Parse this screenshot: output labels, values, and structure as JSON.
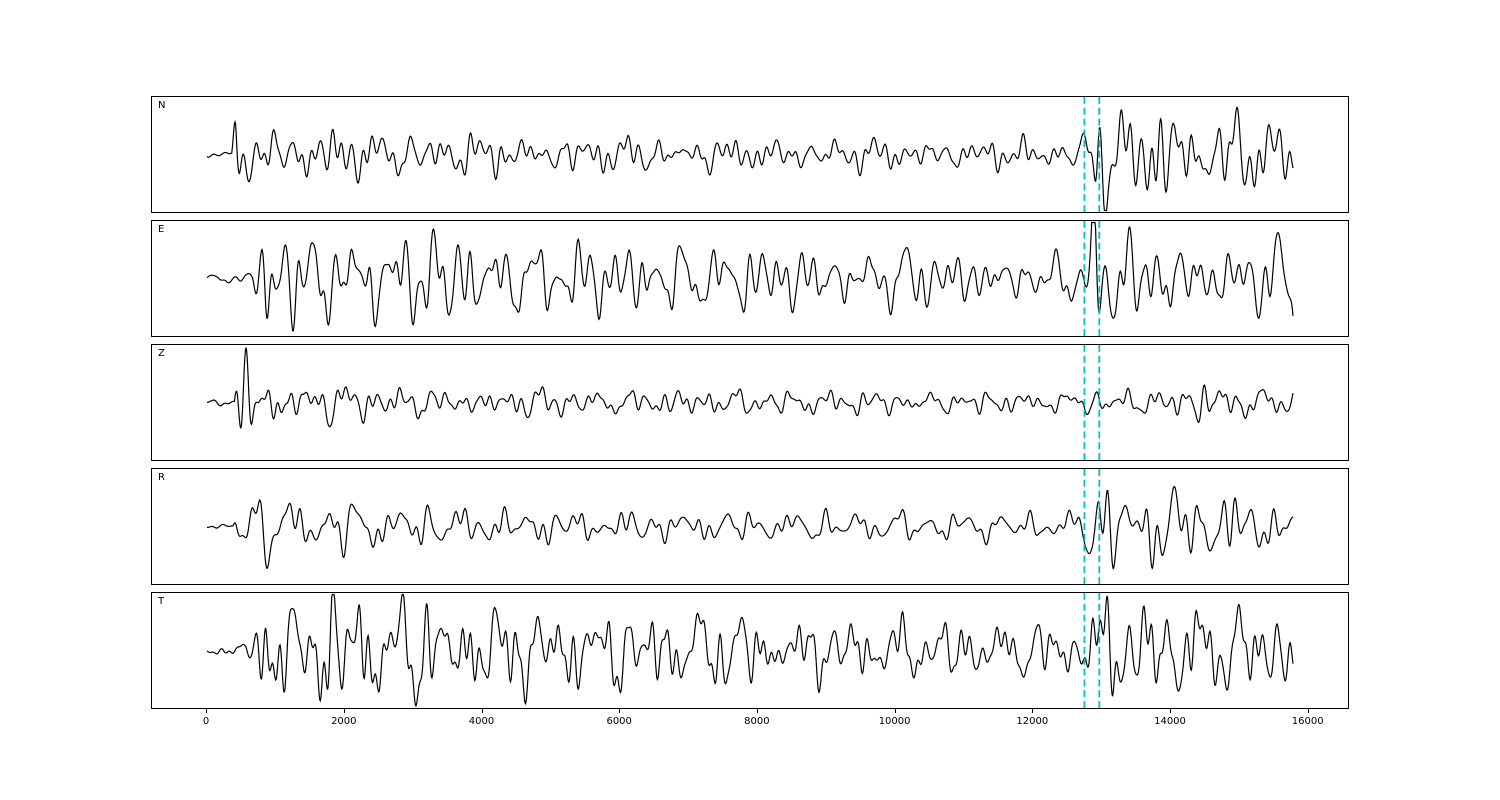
{
  "figure": {
    "background": "#ffffff",
    "trace_color": "#000000",
    "pick_line_color": "#00bfbf"
  },
  "chart_data": {
    "type": "line",
    "title": "",
    "xlabel": "",
    "ylabel": "",
    "legend": "none",
    "grid": false,
    "xlim": [
      -800,
      16600
    ],
    "xticks": [
      0,
      2000,
      4000,
      6000,
      8000,
      10000,
      12000,
      14000,
      16000
    ],
    "x_range_data": [
      0,
      15800
    ],
    "sample_step": 8,
    "pick_lines": [
      12765,
      12982
    ],
    "pick_line_style": "dashed",
    "channels": [
      {
        "name": "N",
        "seed": 11,
        "amplitude": 0.85,
        "envelope": [
          [
            0,
            0.04
          ],
          [
            360,
            0.05
          ],
          [
            420,
            0.9
          ],
          [
            520,
            0.55
          ],
          [
            800,
            0.6
          ],
          [
            1500,
            0.55
          ],
          [
            2500,
            0.45
          ],
          [
            4000,
            0.4
          ],
          [
            6000,
            0.35
          ],
          [
            8000,
            0.32
          ],
          [
            10000,
            0.3
          ],
          [
            12000,
            0.3
          ],
          [
            12700,
            0.32
          ],
          [
            12870,
            0.7
          ],
          [
            12960,
            1.5
          ],
          [
            13120,
            1.1
          ],
          [
            13400,
            0.7
          ],
          [
            13800,
            1.1
          ],
          [
            14200,
            0.9
          ],
          [
            14700,
            1.0
          ],
          [
            15200,
            0.7
          ],
          [
            15800,
            0.55
          ]
        ]
      },
      {
        "name": "E",
        "seed": 23,
        "amplitude": 0.9,
        "envelope": [
          [
            0,
            0.05
          ],
          [
            650,
            0.12
          ],
          [
            850,
            1.3
          ],
          [
            1050,
            0.8
          ],
          [
            1500,
            0.9
          ],
          [
            2100,
            0.95
          ],
          [
            3000,
            0.85
          ],
          [
            4200,
            0.75
          ],
          [
            5500,
            0.7
          ],
          [
            7000,
            0.65
          ],
          [
            8500,
            0.6
          ],
          [
            10000,
            0.55
          ],
          [
            11500,
            0.5
          ],
          [
            12600,
            0.45
          ],
          [
            12850,
            0.8
          ],
          [
            12950,
            1.5
          ],
          [
            13150,
            0.9
          ],
          [
            13600,
            0.8
          ],
          [
            14100,
            0.9
          ],
          [
            14600,
            0.7
          ],
          [
            15100,
            0.6
          ],
          [
            15500,
            0.6
          ],
          [
            15800,
            1.0
          ]
        ]
      },
      {
        "name": "Z",
        "seed": 37,
        "amplitude": 0.9,
        "envelope": [
          [
            0,
            0.04
          ],
          [
            400,
            0.06
          ],
          [
            450,
            2.0
          ],
          [
            560,
            1.2
          ],
          [
            700,
            0.5
          ],
          [
            1000,
            0.6
          ],
          [
            1300,
            0.45
          ],
          [
            1800,
            0.35
          ],
          [
            2500,
            0.3
          ],
          [
            4000,
            0.27
          ],
          [
            6000,
            0.25
          ],
          [
            8000,
            0.25
          ],
          [
            10000,
            0.22
          ],
          [
            12000,
            0.2
          ],
          [
            13000,
            0.24
          ],
          [
            14000,
            0.22
          ],
          [
            14600,
            0.5
          ],
          [
            15000,
            0.4
          ],
          [
            15400,
            0.3
          ],
          [
            15800,
            0.25
          ]
        ]
      },
      {
        "name": "R",
        "seed": 47,
        "amplitude": 0.85,
        "envelope": [
          [
            0,
            0.04
          ],
          [
            380,
            0.05
          ],
          [
            430,
            0.8
          ],
          [
            560,
            0.55
          ],
          [
            900,
            0.6
          ],
          [
            1600,
            0.5
          ],
          [
            2500,
            0.45
          ],
          [
            4000,
            0.4
          ],
          [
            6000,
            0.35
          ],
          [
            8000,
            0.3
          ],
          [
            10000,
            0.28
          ],
          [
            11800,
            0.26
          ],
          [
            12600,
            0.28
          ],
          [
            12870,
            0.8
          ],
          [
            12980,
            1.5
          ],
          [
            13200,
            0.8
          ],
          [
            13500,
            0.6
          ],
          [
            13900,
            1.1
          ],
          [
            14300,
            0.7
          ],
          [
            14800,
            0.85
          ],
          [
            15300,
            0.6
          ],
          [
            15800,
            0.45
          ]
        ]
      },
      {
        "name": "T",
        "seed": 59,
        "amplitude": 0.95,
        "envelope": [
          [
            0,
            0.05
          ],
          [
            550,
            0.15
          ],
          [
            850,
            1.2
          ],
          [
            1150,
            0.9
          ],
          [
            1500,
            1.0
          ],
          [
            2100,
            1.3
          ],
          [
            2600,
            0.85
          ],
          [
            3500,
            0.9
          ],
          [
            4500,
            0.8
          ],
          [
            5500,
            0.75
          ],
          [
            7000,
            0.7
          ],
          [
            8500,
            0.6
          ],
          [
            10000,
            0.55
          ],
          [
            11500,
            0.5
          ],
          [
            12600,
            0.45
          ],
          [
            12880,
            1.1
          ],
          [
            13050,
            1.3
          ],
          [
            13400,
            0.8
          ],
          [
            13900,
            0.95
          ],
          [
            14400,
            0.8
          ],
          [
            14900,
            0.75
          ],
          [
            15400,
            0.7
          ],
          [
            15650,
            0.9
          ],
          [
            15800,
            0.6
          ]
        ]
      }
    ]
  },
  "layout_note": "five stacked seismic waveform subplots sharing one x axis"
}
